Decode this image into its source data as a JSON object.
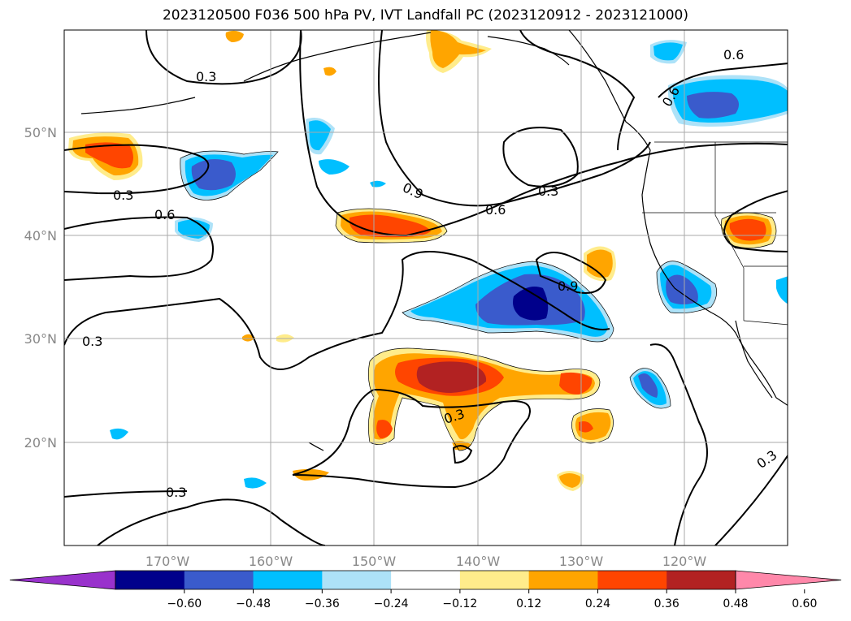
{
  "title": "2023120500 F036 500 hPa PV, IVT Landfall PC (2023120912 - 2023121000)",
  "lon_ticks": [
    "170°W",
    "160°W",
    "150°W",
    "140°W",
    "130°W",
    "120°W"
  ],
  "lat_ticks": [
    "50°N",
    "40°N",
    "30°N",
    "20°N"
  ],
  "contour_labels": [
    "0.3",
    "0.3",
    "0.6",
    "0.3",
    "0.3",
    "0.9",
    "0.6",
    "0.3",
    "0.9",
    "0.3",
    "0.6",
    "0.6",
    "0.3"
  ],
  "colorbar": {
    "ticks": [
      "−0.60",
      "−0.48",
      "−0.36",
      "−0.24",
      "−0.12",
      "0.12",
      "0.24",
      "0.36",
      "0.48",
      "0.60"
    ],
    "colors": [
      "#9932cc",
      "#00008b",
      "#3a5bcc",
      "#00bfff",
      "#ade2f8",
      "#ffffff",
      "#ffec8b",
      "#ffa500",
      "#ff4500",
      "#b22222",
      "#ff88aa"
    ]
  },
  "map_data": {
    "projection": "lat-lon",
    "lon_range": [
      -180,
      -110
    ],
    "lat_range": [
      10,
      60
    ],
    "levels": [
      -0.6,
      -0.48,
      -0.36,
      -0.24,
      -0.12,
      0.12,
      0.24,
      0.36,
      0.48,
      0.6
    ]
  }
}
